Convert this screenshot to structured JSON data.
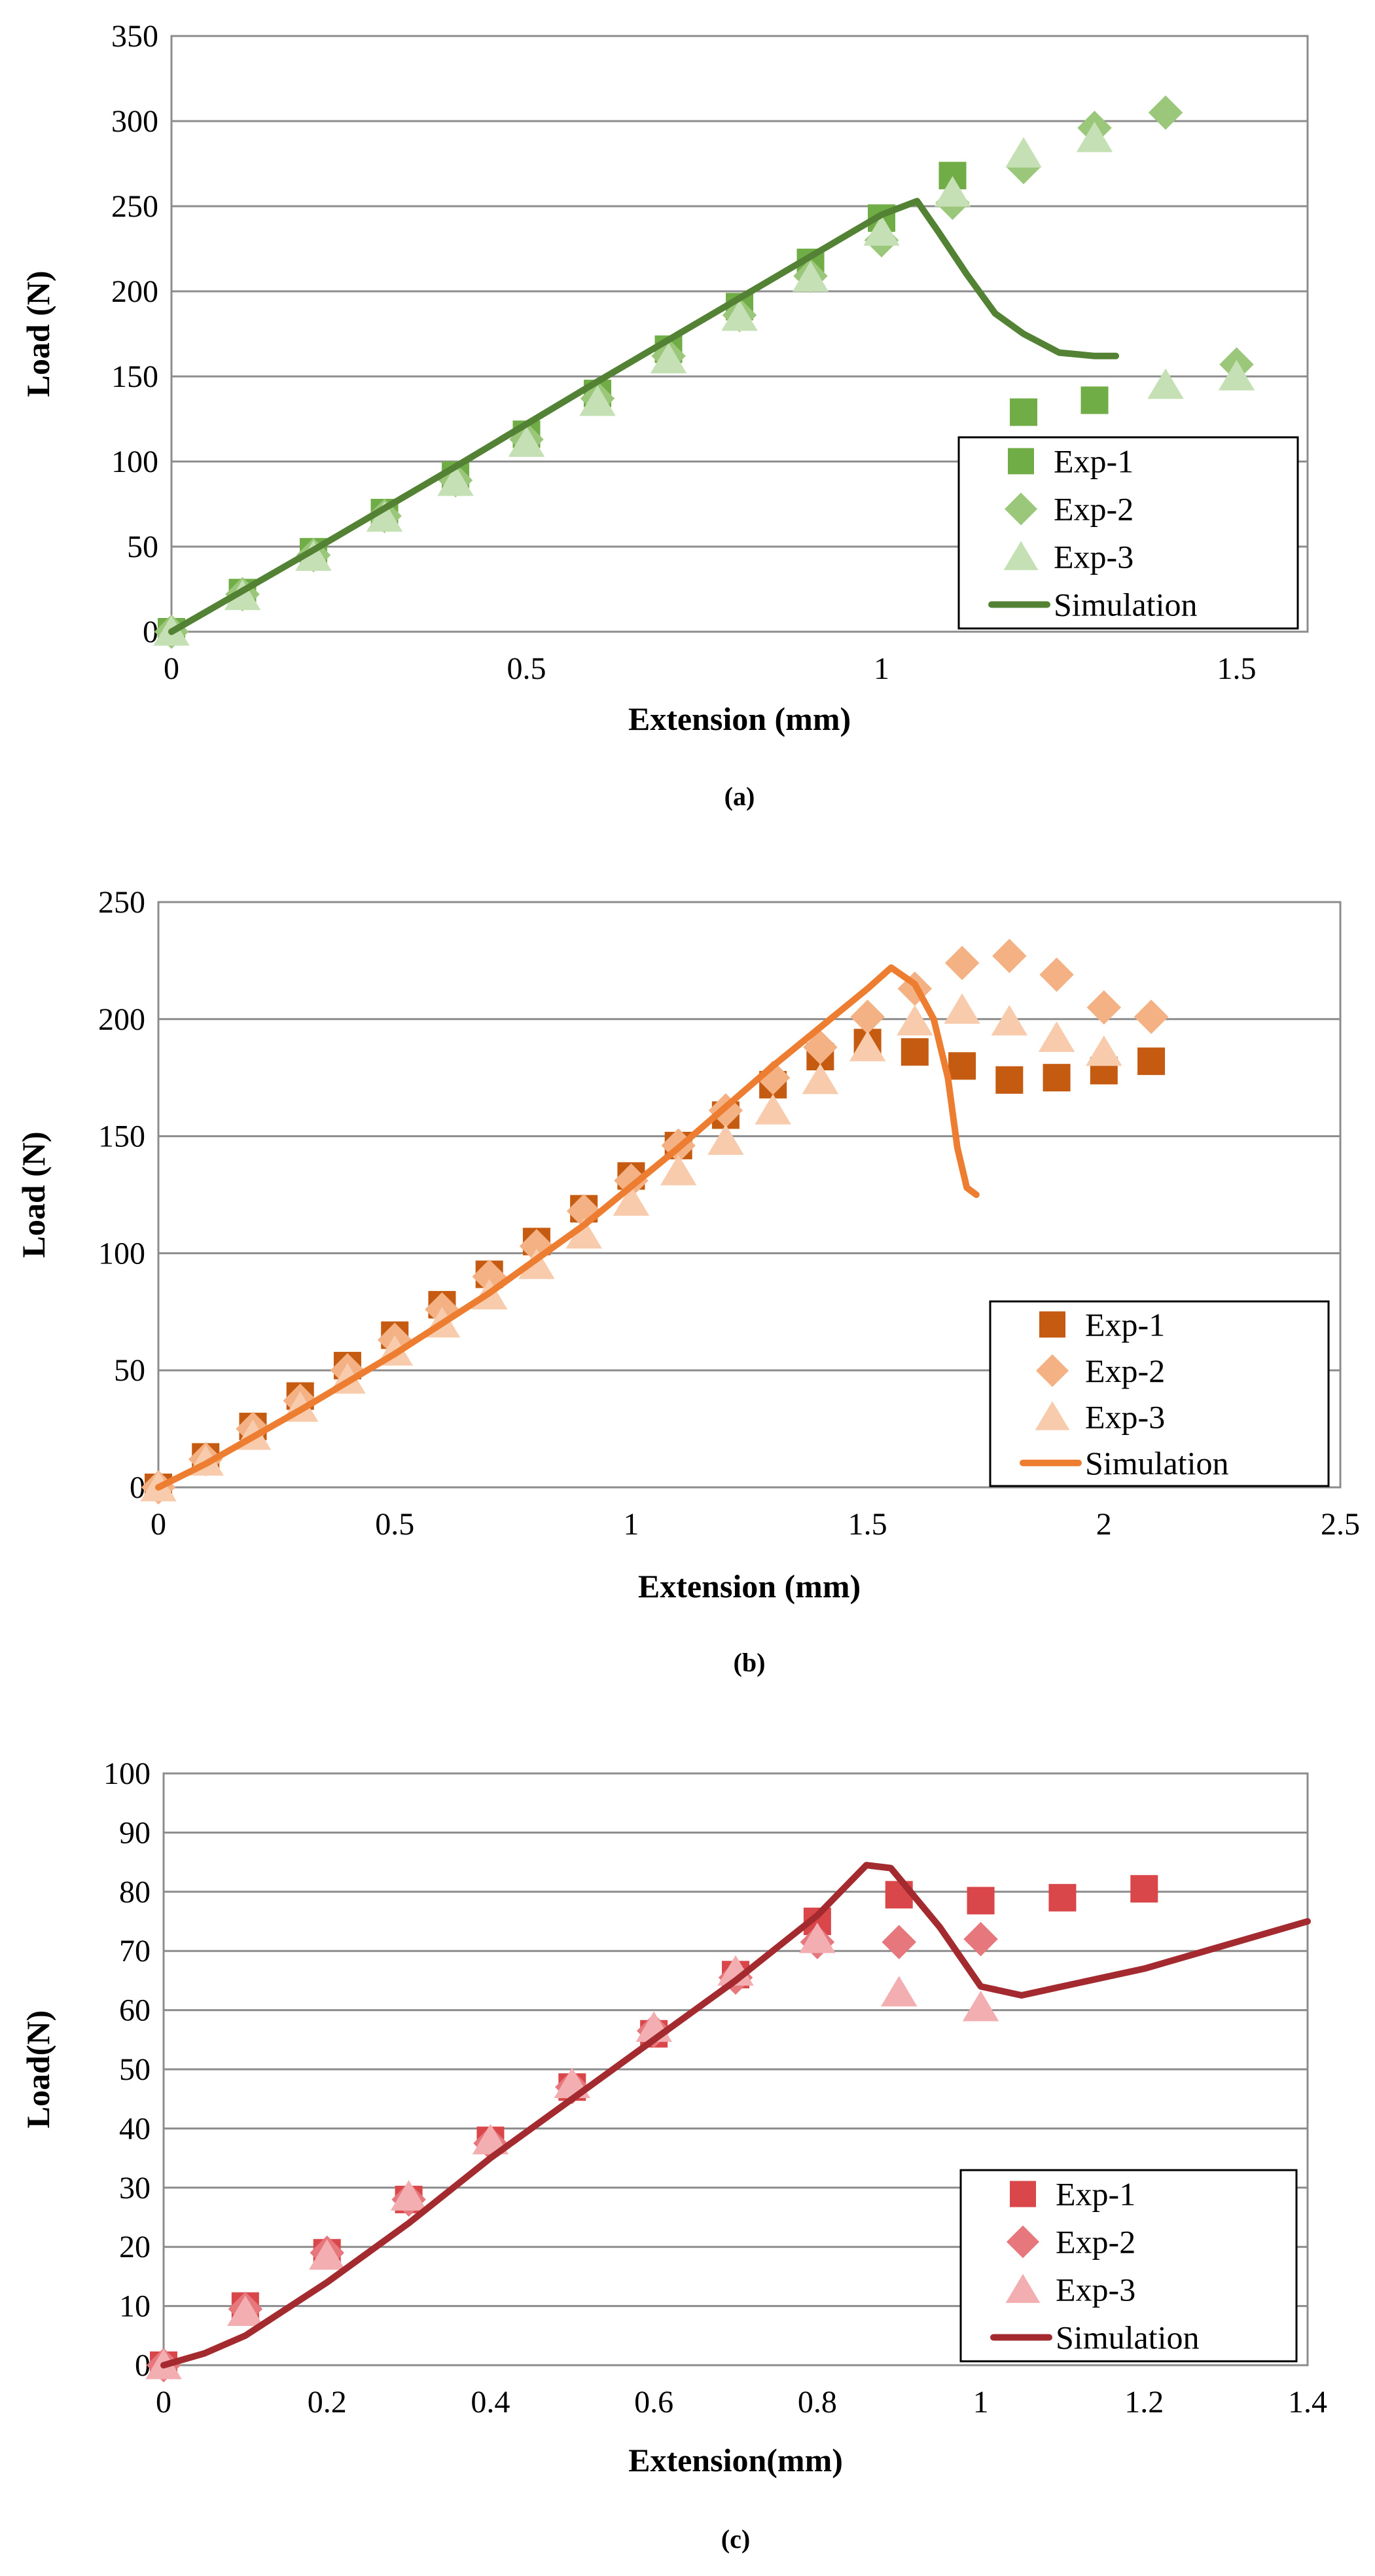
{
  "chart_data": [
    {
      "type": "scatter",
      "caption": "(a)",
      "xlabel": "Extension (mm)",
      "ylabel": "Load (N)",
      "xlim": [
        0,
        1.6
      ],
      "ylim": [
        0,
        350
      ],
      "xticks": [
        0,
        0.5,
        1,
        1.5
      ],
      "xtick_labels": [
        "0",
        "0.5",
        "1",
        "1.5"
      ],
      "yticks": [
        0,
        50,
        100,
        150,
        200,
        250,
        300,
        350
      ],
      "ytick_labels": [
        "0",
        "50",
        "100",
        "150",
        "200",
        "250",
        "300",
        "350"
      ],
      "legend_position": "bottom-right",
      "colors": {
        "exp1": "#70ad47",
        "exp2": "#9bc77b",
        "exp3": "#c5e0b4",
        "sim": "#548235"
      },
      "series": [
        {
          "name": "Exp-1",
          "marker": "square",
          "x": [
            0,
            0.1,
            0.2,
            0.3,
            0.4,
            0.5,
            0.6,
            0.7,
            0.8,
            0.9,
            1.0,
            1.1,
            1.2,
            1.3
          ],
          "y": [
            0,
            23,
            47,
            70,
            92,
            116,
            140,
            166,
            191,
            217,
            243,
            268,
            129,
            136
          ]
        },
        {
          "name": "Exp-2",
          "marker": "diamond",
          "x": [
            0,
            0.1,
            0.2,
            0.3,
            0.4,
            0.5,
            0.6,
            0.7,
            0.8,
            0.9,
            1.0,
            1.1,
            1.2,
            1.3,
            1.4,
            1.5
          ],
          "y": [
            0,
            22,
            45,
            68,
            89,
            113,
            137,
            162,
            186,
            209,
            230,
            252,
            273,
            296,
            305,
            157
          ]
        },
        {
          "name": "Exp-3",
          "marker": "triangle",
          "x": [
            0,
            0.1,
            0.2,
            0.3,
            0.4,
            0.5,
            0.6,
            0.7,
            0.8,
            0.9,
            1.0,
            1.1,
            1.2,
            1.3,
            1.4,
            1.5
          ],
          "y": [
            0,
            21,
            44,
            67,
            88,
            111,
            135,
            160,
            185,
            208,
            235,
            258,
            281,
            290,
            145,
            150
          ]
        },
        {
          "name": "Simulation",
          "marker": "line",
          "x": [
            0,
            0.2,
            0.4,
            0.6,
            0.8,
            1.0,
            1.05,
            1.08,
            1.12,
            1.16,
            1.2,
            1.25,
            1.3,
            1.33
          ],
          "y": [
            0,
            48,
            97,
            147,
            196,
            245,
            253,
            235,
            210,
            187,
            175,
            164,
            162,
            162
          ]
        }
      ]
    },
    {
      "type": "scatter",
      "caption": "(b)",
      "xlabel": "Extension (mm)",
      "ylabel": "Load (N)",
      "xlim": [
        0,
        2.5
      ],
      "ylim": [
        0,
        250
      ],
      "xticks": [
        0,
        0.5,
        1,
        1.5,
        2,
        2.5
      ],
      "xtick_labels": [
        "0",
        "0.5",
        "1",
        "1.5",
        "2",
        "2.5"
      ],
      "yticks": [
        0,
        50,
        100,
        150,
        200,
        250
      ],
      "ytick_labels": [
        "0",
        "50",
        "100",
        "150",
        "200",
        "250"
      ],
      "legend_position": "bottom-right",
      "colors": {
        "exp1": "#c55a11",
        "exp2": "#f4b183",
        "exp3": "#f8cbad",
        "sim": "#ed7d31"
      },
      "series": [
        {
          "name": "Exp-1",
          "marker": "square",
          "x": [
            0,
            0.1,
            0.2,
            0.3,
            0.4,
            0.5,
            0.6,
            0.7,
            0.8,
            0.9,
            1.0,
            1.1,
            1.2,
            1.3,
            1.4,
            1.5,
            1.6,
            1.7,
            1.8,
            1.9,
            2.0,
            2.1
          ],
          "y": [
            0,
            13,
            26,
            39,
            52,
            65,
            78,
            91,
            105,
            119,
            133,
            146,
            159,
            172,
            184,
            190,
            186,
            180,
            174,
            175,
            178,
            182
          ]
        },
        {
          "name": "Exp-2",
          "marker": "diamond",
          "x": [
            0,
            0.1,
            0.2,
            0.3,
            0.4,
            0.5,
            0.6,
            0.7,
            0.8,
            0.9,
            1.0,
            1.1,
            1.2,
            1.3,
            1.4,
            1.5,
            1.6,
            1.7,
            1.8,
            1.9,
            2.0,
            2.1
          ],
          "y": [
            0,
            12,
            25,
            37,
            50,
            63,
            76,
            90,
            103,
            118,
            131,
            146,
            161,
            175,
            188,
            201,
            213,
            224,
            227,
            219,
            205,
            201
          ]
        },
        {
          "name": "Exp-3",
          "marker": "triangle",
          "x": [
            0,
            0.1,
            0.2,
            0.3,
            0.4,
            0.5,
            0.6,
            0.7,
            0.8,
            0.9,
            1.0,
            1.1,
            1.2,
            1.3,
            1.4,
            1.5,
            1.6,
            1.7,
            1.8,
            1.9,
            2.0
          ],
          "y": [
            0,
            11,
            22,
            34,
            46,
            58,
            70,
            82,
            95,
            108,
            122,
            135,
            148,
            161,
            174,
            188,
            199,
            204,
            199,
            192,
            186
          ]
        },
        {
          "name": "Simulation",
          "marker": "line",
          "x": [
            0,
            0.1,
            0.3,
            0.5,
            0.7,
            0.9,
            1.1,
            1.3,
            1.5,
            1.55,
            1.6,
            1.64,
            1.67,
            1.69,
            1.71,
            1.73
          ],
          "y": [
            0,
            10,
            33,
            57,
            83,
            112,
            145,
            180,
            213,
            222,
            215,
            200,
            175,
            145,
            128,
            125
          ]
        }
      ]
    },
    {
      "type": "scatter",
      "caption": "(c)",
      "xlabel": "Extension(mm)",
      "ylabel": "Load(N)",
      "xlim": [
        0,
        1.4
      ],
      "ylim": [
        0,
        100
      ],
      "xticks": [
        0,
        0.2,
        0.4,
        0.6,
        0.8,
        1,
        1.2,
        1.4
      ],
      "xtick_labels": [
        "0",
        "0.2",
        "0.4",
        "0.6",
        "0.8",
        "1",
        "1.2",
        "1.4"
      ],
      "yticks": [
        0,
        10,
        20,
        30,
        40,
        50,
        60,
        70,
        80,
        90,
        100
      ],
      "ytick_labels": [
        "0",
        "10",
        "20",
        "30",
        "40",
        "50",
        "60",
        "70",
        "80",
        "90",
        "100"
      ],
      "legend_position": "bottom-right",
      "colors": {
        "exp1": "#d9474a",
        "exp2": "#e6777c",
        "exp3": "#f2aeb1",
        "sim": "#a32a2e"
      },
      "series": [
        {
          "name": "Exp-1",
          "marker": "square",
          "x": [
            0,
            0.1,
            0.2,
            0.3,
            0.4,
            0.5,
            0.6,
            0.7,
            0.8,
            0.9,
            1.0,
            1.1,
            1.2
          ],
          "y": [
            0,
            10,
            19,
            28,
            38,
            47,
            56,
            66,
            75,
            79.5,
            78.5,
            79,
            80.5
          ]
        },
        {
          "name": "Exp-2",
          "marker": "diamond",
          "x": [
            0,
            0.1,
            0.2,
            0.3,
            0.4,
            0.5,
            0.6,
            0.7,
            0.8,
            0.9,
            1.0
          ],
          "y": [
            0,
            9.5,
            19,
            28,
            37.5,
            47,
            56.5,
            65.5,
            71.5,
            71.5,
            72
          ]
        },
        {
          "name": "Exp-3",
          "marker": "triangle",
          "x": [
            0,
            0.1,
            0.2,
            0.3,
            0.4,
            0.5,
            0.6,
            0.7,
            0.8,
            0.9,
            1.0
          ],
          "y": [
            0,
            9,
            18.5,
            28.5,
            38,
            47.5,
            57,
            66.5,
            72,
            63,
            60.5
          ]
        },
        {
          "name": "Simulation",
          "marker": "line",
          "x": [
            0,
            0.05,
            0.1,
            0.2,
            0.3,
            0.4,
            0.5,
            0.6,
            0.7,
            0.8,
            0.86,
            0.89,
            0.95,
            1.0,
            1.05,
            1.1,
            1.2,
            1.3,
            1.4
          ],
          "y": [
            0,
            2,
            5,
            14,
            24,
            35,
            45,
            55,
            65,
            76,
            84.5,
            84,
            74,
            64,
            62.5,
            64,
            67,
            71,
            75
          ]
        }
      ]
    }
  ]
}
